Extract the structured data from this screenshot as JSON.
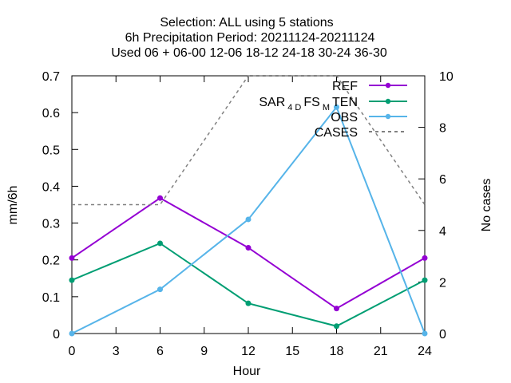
{
  "title_lines": [
    "Selection: ALL using     5 stations",
    "6h Precipitation   Period: 20211124-20211124",
    "Used  06 + 06-00 12-06 18-12 24-18 30-24 36-30"
  ],
  "legend_labels": {
    "ref": "REF",
    "ten_prefix": "SAR",
    "ten_sub1": "4 D",
    "ten_mid": "FS",
    "ten_sub2": "M",
    "ten_suffix": "TEN",
    "obs": "OBS",
    "cases": "CASES"
  },
  "chart_data": {
    "type": "line",
    "xlabel": "Hour",
    "ylabel": "mm/6h",
    "y2label": "No cases",
    "x": [
      0,
      6,
      12,
      18,
      24
    ],
    "xlim": [
      0,
      24
    ],
    "ylim": [
      0,
      0.7
    ],
    "y2lim": [
      0,
      10
    ],
    "x_ticks": [
      "0",
      "3",
      "6",
      "9",
      "12",
      "15",
      "18",
      "21",
      "24"
    ],
    "y_ticks": [
      "0",
      "0.1",
      "0.2",
      "0.3",
      "0.4",
      "0.5",
      "0.6",
      "0.7"
    ],
    "y2_ticks": [
      "0",
      "2",
      "4",
      "6",
      "8",
      "10"
    ],
    "grid": false,
    "legend_position": "top-right",
    "series": [
      {
        "name": "REF",
        "axis": "y",
        "color": "#9400d3",
        "style": "solid",
        "marker": "circle",
        "values": [
          0.205,
          0.368,
          0.233,
          0.068,
          0.205
        ]
      },
      {
        "name": "SAR 4D FS M TEN",
        "axis": "y",
        "color": "#009e73",
        "style": "solid",
        "marker": "circle",
        "values": [
          0.145,
          0.245,
          0.082,
          0.02,
          0.145
        ]
      },
      {
        "name": "OBS",
        "axis": "y",
        "color": "#56b4e9",
        "style": "solid",
        "marker": "circle",
        "values": [
          0.0,
          0.12,
          0.31,
          0.615,
          0.0
        ]
      },
      {
        "name": "CASES",
        "axis": "y2",
        "color": "#808080",
        "style": "dashed",
        "marker": "none",
        "values": [
          5,
          5,
          10,
          10,
          5
        ]
      }
    ]
  }
}
